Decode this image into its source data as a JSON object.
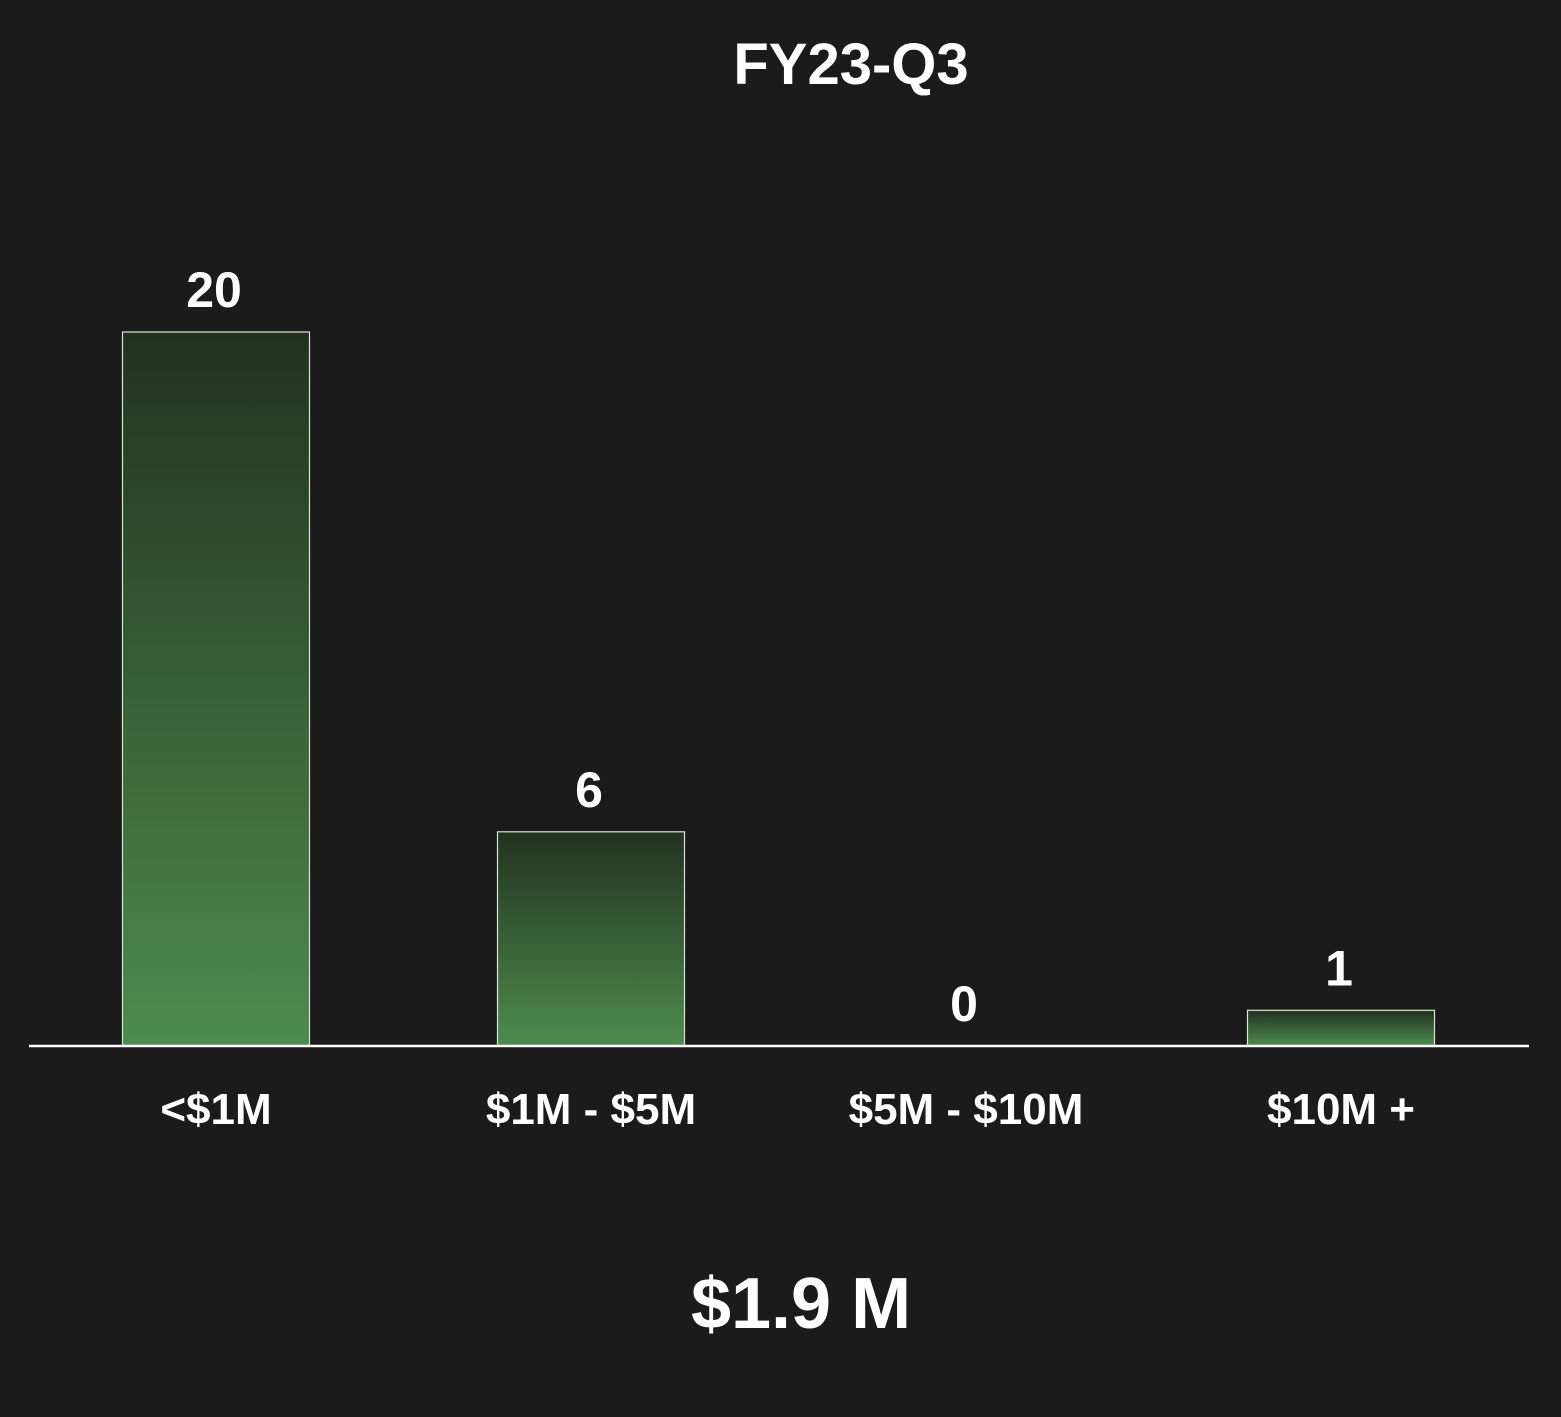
{
  "chart_data": {
    "type": "bar",
    "title": "FY23-Q3",
    "categories": [
      "<$1M",
      "$1M - $5M",
      "$5M - $10M",
      "$10M +"
    ],
    "values": [
      20,
      6,
      0,
      1
    ],
    "data_labels": [
      "20",
      "6",
      "0",
      "1"
    ],
    "xlabel": "",
    "ylabel": "",
    "ylim": [
      0,
      20
    ],
    "grid": false,
    "legend": "none",
    "colors": {
      "background": "#1b1b1b",
      "bar_top": "#22321f",
      "bar_bottom": "#4e8c4e",
      "bar_outline": "#d6e5d4",
      "axis": "#ffffff",
      "text": "#ffffff"
    }
  },
  "summary": {
    "value": "$1.9 M"
  }
}
